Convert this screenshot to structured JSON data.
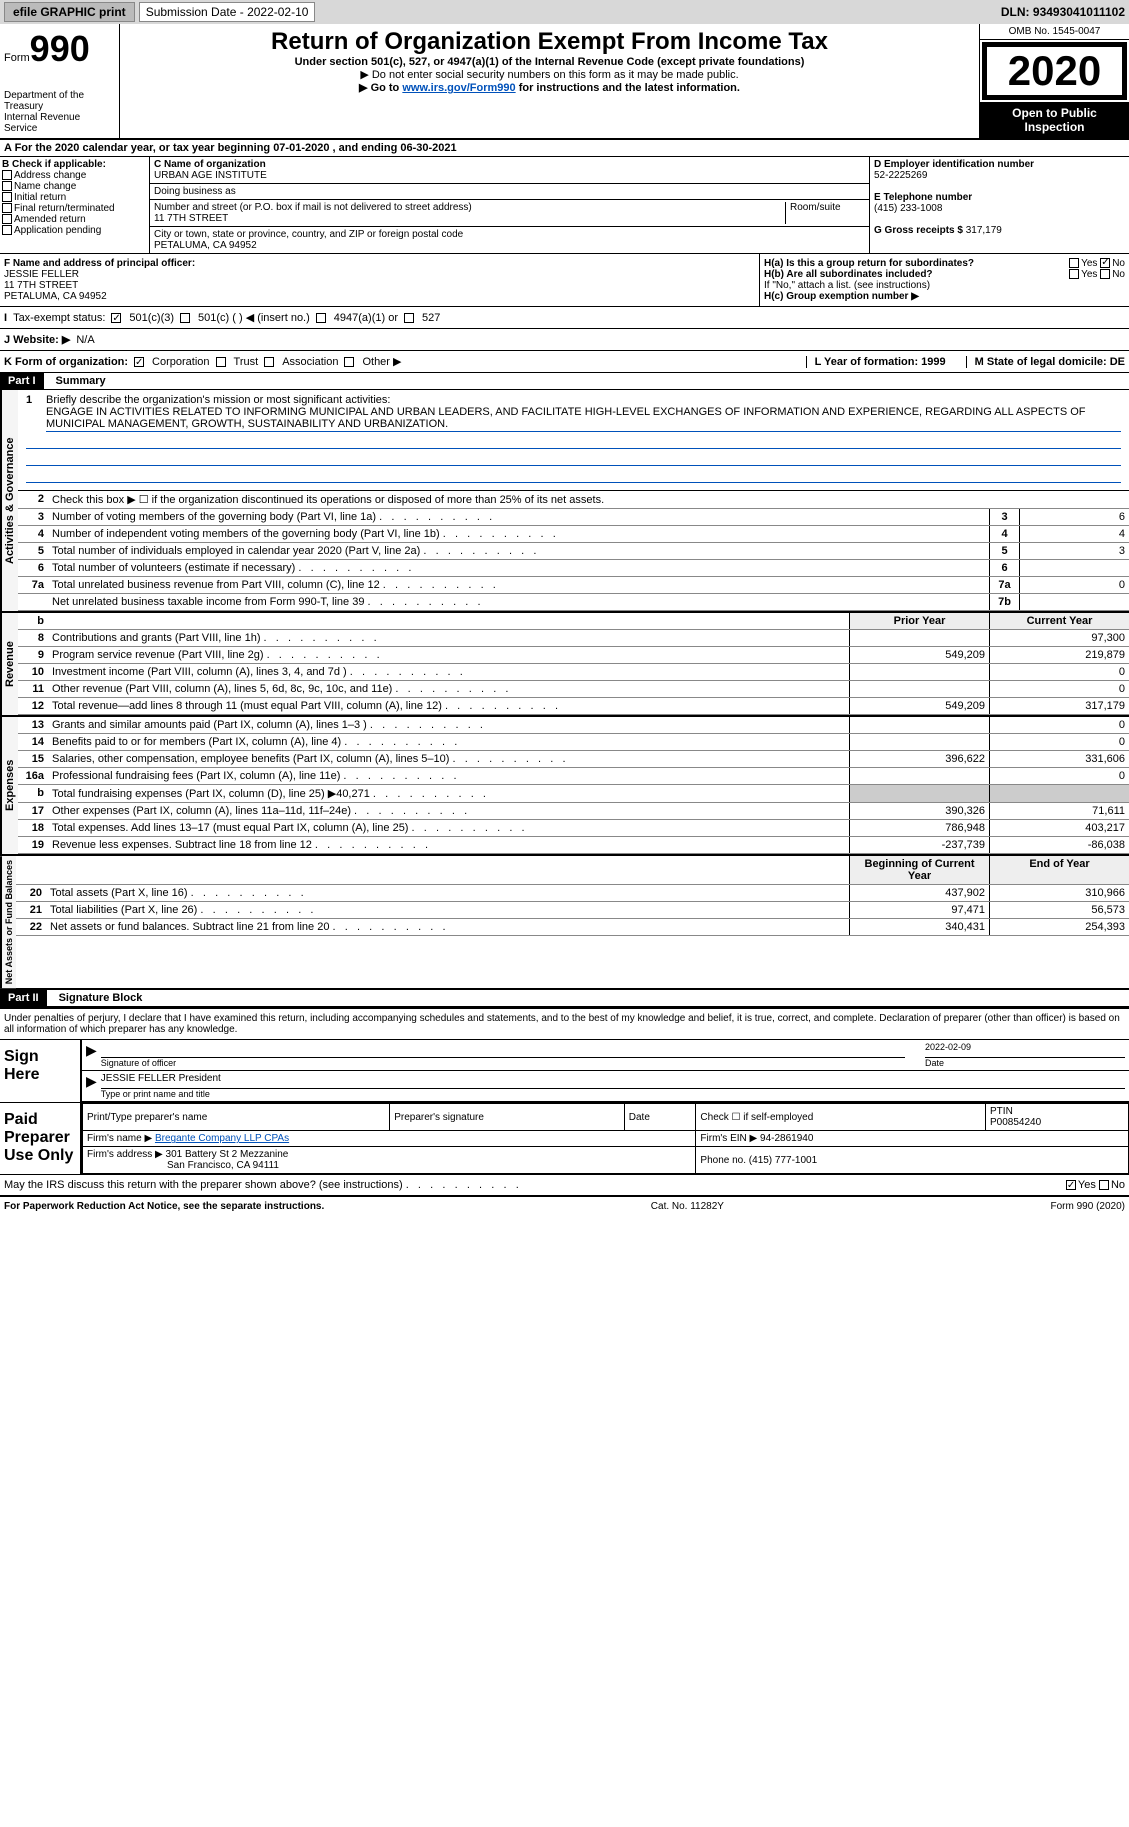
{
  "top": {
    "efile": "efile GRAPHIC print",
    "sub_date_label": "Submission Date - ",
    "sub_date": "2022-02-10",
    "dln_label": "DLN: ",
    "dln": "93493041011102"
  },
  "header": {
    "form_word": "Form",
    "form_num": "990",
    "dept": "Department of the Treasury\nInternal Revenue Service",
    "title": "Return of Organization Exempt From Income Tax",
    "subtitle": "Under section 501(c), 527, or 4947(a)(1) of the Internal Revenue Code (except private foundations)",
    "note1": "▶ Do not enter social security numbers on this form as it may be made public.",
    "note2a": "▶ Go to ",
    "note2_link": "www.irs.gov/Form990",
    "note2b": " for instructions and the latest information.",
    "omb": "OMB No. 1545-0047",
    "year": "2020",
    "open": "Open to Public Inspection"
  },
  "period": {
    "line": "A For the 2020 calendar year, or tax year beginning 07-01-2020   , and ending 06-30-2021"
  },
  "B": {
    "label": "B Check if applicable:",
    "items": [
      "Address change",
      "Name change",
      "Initial return",
      "Final return/terminated",
      "Amended return",
      "Application pending"
    ]
  },
  "C": {
    "name_label": "C Name of organization",
    "name": "URBAN AGE INSTITUTE",
    "dba_label": "Doing business as",
    "addr_label": "Number and street (or P.O. box if mail is not delivered to street address)",
    "room_label": "Room/suite",
    "addr": "11 7TH STREET",
    "city_label": "City or town, state or province, country, and ZIP or foreign postal code",
    "city": "PETALUMA, CA  94952"
  },
  "D": {
    "label": "D Employer identification number",
    "ein": "52-2225269"
  },
  "E": {
    "label": "E Telephone number",
    "phone": "(415) 233-1008"
  },
  "G": {
    "label": "G Gross receipts $ ",
    "amount": "317,179"
  },
  "F": {
    "label": "F Name and address of principal officer:",
    "name": "JESSIE FELLER",
    "addr1": "11 7TH STREET",
    "addr2": "PETALUMA, CA  94952"
  },
  "H": {
    "a_label": "H(a)  Is this a group return for subordinates?",
    "a_yes": "Yes",
    "a_no": "No",
    "b_label": "H(b)  Are all subordinates included?",
    "b_yes": "Yes",
    "b_no": "No",
    "b_note": "If \"No,\" attach a list. (see instructions)",
    "c_label": "H(c)  Group exemption number ▶"
  },
  "I": {
    "label": "Tax-exempt status:",
    "opts": [
      "501(c)(3)",
      "501(c) (   ) ◀ (insert no.)",
      "4947(a)(1) or",
      "527"
    ]
  },
  "J": {
    "label": "J   Website: ▶",
    "value": "N/A"
  },
  "K": {
    "label": "K Form of organization:",
    "opts": [
      "Corporation",
      "Trust",
      "Association",
      "Other ▶"
    ],
    "L": "L Year of formation: 1999",
    "M": "M State of legal domicile: DE"
  },
  "part1": {
    "header": "Part I",
    "title": "Summary",
    "q1": "Briefly describe the organization's mission or most significant activities:",
    "mission": "ENGAGE IN ACTIVITIES RELATED TO INFORMING MUNICIPAL AND URBAN LEADERS, AND FACILITATE HIGH-LEVEL EXCHANGES OF INFORMATION AND EXPERIENCE, REGARDING ALL ASPECTS OF MUNICIPAL MANAGEMENT, GROWTH, SUSTAINABILITY AND URBANIZATION.",
    "q2": "Check this box ▶ ☐  if the organization discontinued its operations or disposed of more than 25% of its net assets.",
    "lines_gov": [
      {
        "n": "3",
        "d": "Number of voting members of the governing body (Part VI, line 1a)",
        "box": "3",
        "v": "6"
      },
      {
        "n": "4",
        "d": "Number of independent voting members of the governing body (Part VI, line 1b)",
        "box": "4",
        "v": "4"
      },
      {
        "n": "5",
        "d": "Total number of individuals employed in calendar year 2020 (Part V, line 2a)",
        "box": "5",
        "v": "3"
      },
      {
        "n": "6",
        "d": "Total number of volunteers (estimate if necessary)",
        "box": "6",
        "v": ""
      },
      {
        "n": "7a",
        "d": "Total unrelated business revenue from Part VIII, column (C), line 12",
        "box": "7a",
        "v": "0"
      },
      {
        "n": "",
        "d": "Net unrelated business taxable income from Form 990-T, line 39",
        "box": "7b",
        "v": ""
      }
    ],
    "col_prior": "Prior Year",
    "col_current": "Current Year",
    "rev": [
      {
        "n": "8",
        "d": "Contributions and grants (Part VIII, line 1h)",
        "p": "",
        "c": "97,300"
      },
      {
        "n": "9",
        "d": "Program service revenue (Part VIII, line 2g)",
        "p": "549,209",
        "c": "219,879"
      },
      {
        "n": "10",
        "d": "Investment income (Part VIII, column (A), lines 3, 4, and 7d )",
        "p": "",
        "c": "0"
      },
      {
        "n": "11",
        "d": "Other revenue (Part VIII, column (A), lines 5, 6d, 8c, 9c, 10c, and 11e)",
        "p": "",
        "c": "0"
      },
      {
        "n": "12",
        "d": "Total revenue—add lines 8 through 11 (must equal Part VIII, column (A), line 12)",
        "p": "549,209",
        "c": "317,179"
      }
    ],
    "exp": [
      {
        "n": "13",
        "d": "Grants and similar amounts paid (Part IX, column (A), lines 1–3 )",
        "p": "",
        "c": "0"
      },
      {
        "n": "14",
        "d": "Benefits paid to or for members (Part IX, column (A), line 4)",
        "p": "",
        "c": "0"
      },
      {
        "n": "15",
        "d": "Salaries, other compensation, employee benefits (Part IX, column (A), lines 5–10)",
        "p": "396,622",
        "c": "331,606"
      },
      {
        "n": "16a",
        "d": "Professional fundraising fees (Part IX, column (A), line 11e)",
        "p": "",
        "c": "0"
      },
      {
        "n": "b",
        "d": "Total fundraising expenses (Part IX, column (D), line 25) ▶40,271",
        "p": "shaded",
        "c": "shaded"
      },
      {
        "n": "17",
        "d": "Other expenses (Part IX, column (A), lines 11a–11d, 11f–24e)",
        "p": "390,326",
        "c": "71,611"
      },
      {
        "n": "18",
        "d": "Total expenses. Add lines 13–17 (must equal Part IX, column (A), line 25)",
        "p": "786,948",
        "c": "403,217"
      },
      {
        "n": "19",
        "d": "Revenue less expenses. Subtract line 18 from line 12",
        "p": "-237,739",
        "c": "-86,038"
      }
    ],
    "col_begin": "Beginning of Current Year",
    "col_end": "End of Year",
    "net": [
      {
        "n": "20",
        "d": "Total assets (Part X, line 16)",
        "p": "437,902",
        "c": "310,966"
      },
      {
        "n": "21",
        "d": "Total liabilities (Part X, line 26)",
        "p": "97,471",
        "c": "56,573"
      },
      {
        "n": "22",
        "d": "Net assets or fund balances. Subtract line 21 from line 20",
        "p": "340,431",
        "c": "254,393"
      }
    ],
    "side_gov": "Activities & Governance",
    "side_rev": "Revenue",
    "side_exp": "Expenses",
    "side_net": "Net Assets or Fund Balances"
  },
  "part2": {
    "header": "Part II",
    "title": "Signature Block",
    "decl": "Under penalties of perjury, I declare that I have examined this return, including accompanying schedules and statements, and to the best of my knowledge and belief, it is true, correct, and complete. Declaration of preparer (other than officer) is based on all information of which preparer has any knowledge.",
    "sign_here": "Sign Here",
    "sig_officer": "Signature of officer",
    "sig_date": "Date",
    "sig_date_val": "2022-02-09",
    "sig_name": "JESSIE FELLER  President",
    "sig_type": "Type or print name and title",
    "paid": "Paid Preparer Use Only",
    "prep_name_label": "Print/Type preparer's name",
    "prep_sig_label": "Preparer's signature",
    "prep_date_label": "Date",
    "prep_check": "Check ☐ if self-employed",
    "ptin_label": "PTIN",
    "ptin": "P00854240",
    "firm_name_label": "Firm's name   ▶",
    "firm_name": "Bregante Company LLP CPAs",
    "firm_ein_label": "Firm's EIN ▶",
    "firm_ein": "94-2861940",
    "firm_addr_label": "Firm's address ▶",
    "firm_addr1": "301 Battery St 2 Mezzanine",
    "firm_addr2": "San Francisco, CA  94111",
    "firm_phone_label": "Phone no.",
    "firm_phone": "(415) 777-1001",
    "discuss": "May the IRS discuss this return with the preparer shown above? (see instructions)",
    "yes": "Yes",
    "no": "No"
  },
  "footer": {
    "left": "For Paperwork Reduction Act Notice, see the separate instructions.",
    "mid": "Cat. No. 11282Y",
    "right": "Form 990 (2020)"
  }
}
